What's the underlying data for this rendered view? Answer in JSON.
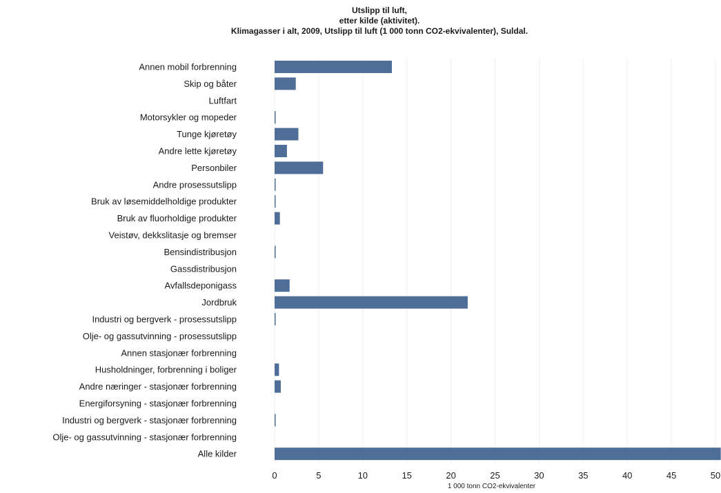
{
  "chart_data": {
    "type": "bar",
    "orientation": "horizontal",
    "title_lines": [
      "Utslipp til luft,",
      "etter kilde (aktivitet).",
      "Klimagasser i alt, 2009, Utslipp til luft (1 000 tonn CO2-ekvivalenter), Suldal."
    ],
    "xlabel": "1 000 tonn CO2-ekvivalenter",
    "ylabel": "",
    "xlim": [
      0,
      50
    ],
    "xticks": [
      0,
      5,
      10,
      15,
      20,
      25,
      30,
      35,
      40,
      45,
      50
    ],
    "grid": true,
    "legend": "none",
    "bar_color": "#4e6d97",
    "categories": [
      "Annen mobil forbrenning",
      "Skip og båter",
      "Luftfart",
      "Motorsykler og mopeder",
      "Tunge kjøretøy",
      "Andre lette kjøretøy",
      "Personbiler",
      "Andre prosessutslipp",
      "Bruk av løsemiddelholdige produkter",
      "Bruk av fluorholdige produkter",
      "Veistøv, dekkslitasje og bremser",
      "Bensindistribusjon",
      "Gassdistribusjon",
      "Avfallsdeponigass",
      "Jordbruk",
      "Industri og bergverk - prosessutslipp",
      "Olje- og gassutvinning - prosessutslipp",
      "Annen stasjonær forbrenning",
      "Husholdninger, forbrenning i boliger",
      "Andre næringer - stasjonær forbrenning",
      "Energiforsyning - stasjonær forbrenning",
      "Industri og bergverk - stasjonær forbrenning",
      "Olje- og gassutvinning - stasjonær forbrenning",
      "Alle kilder"
    ],
    "values": [
      13.3,
      2.4,
      0,
      0.1,
      2.7,
      1.4,
      5.5,
      0.1,
      0.1,
      0.6,
      0,
      0.1,
      0,
      1.7,
      21.9,
      0.1,
      0,
      0,
      0.5,
      0.7,
      0,
      0.1,
      0,
      50.6
    ]
  }
}
